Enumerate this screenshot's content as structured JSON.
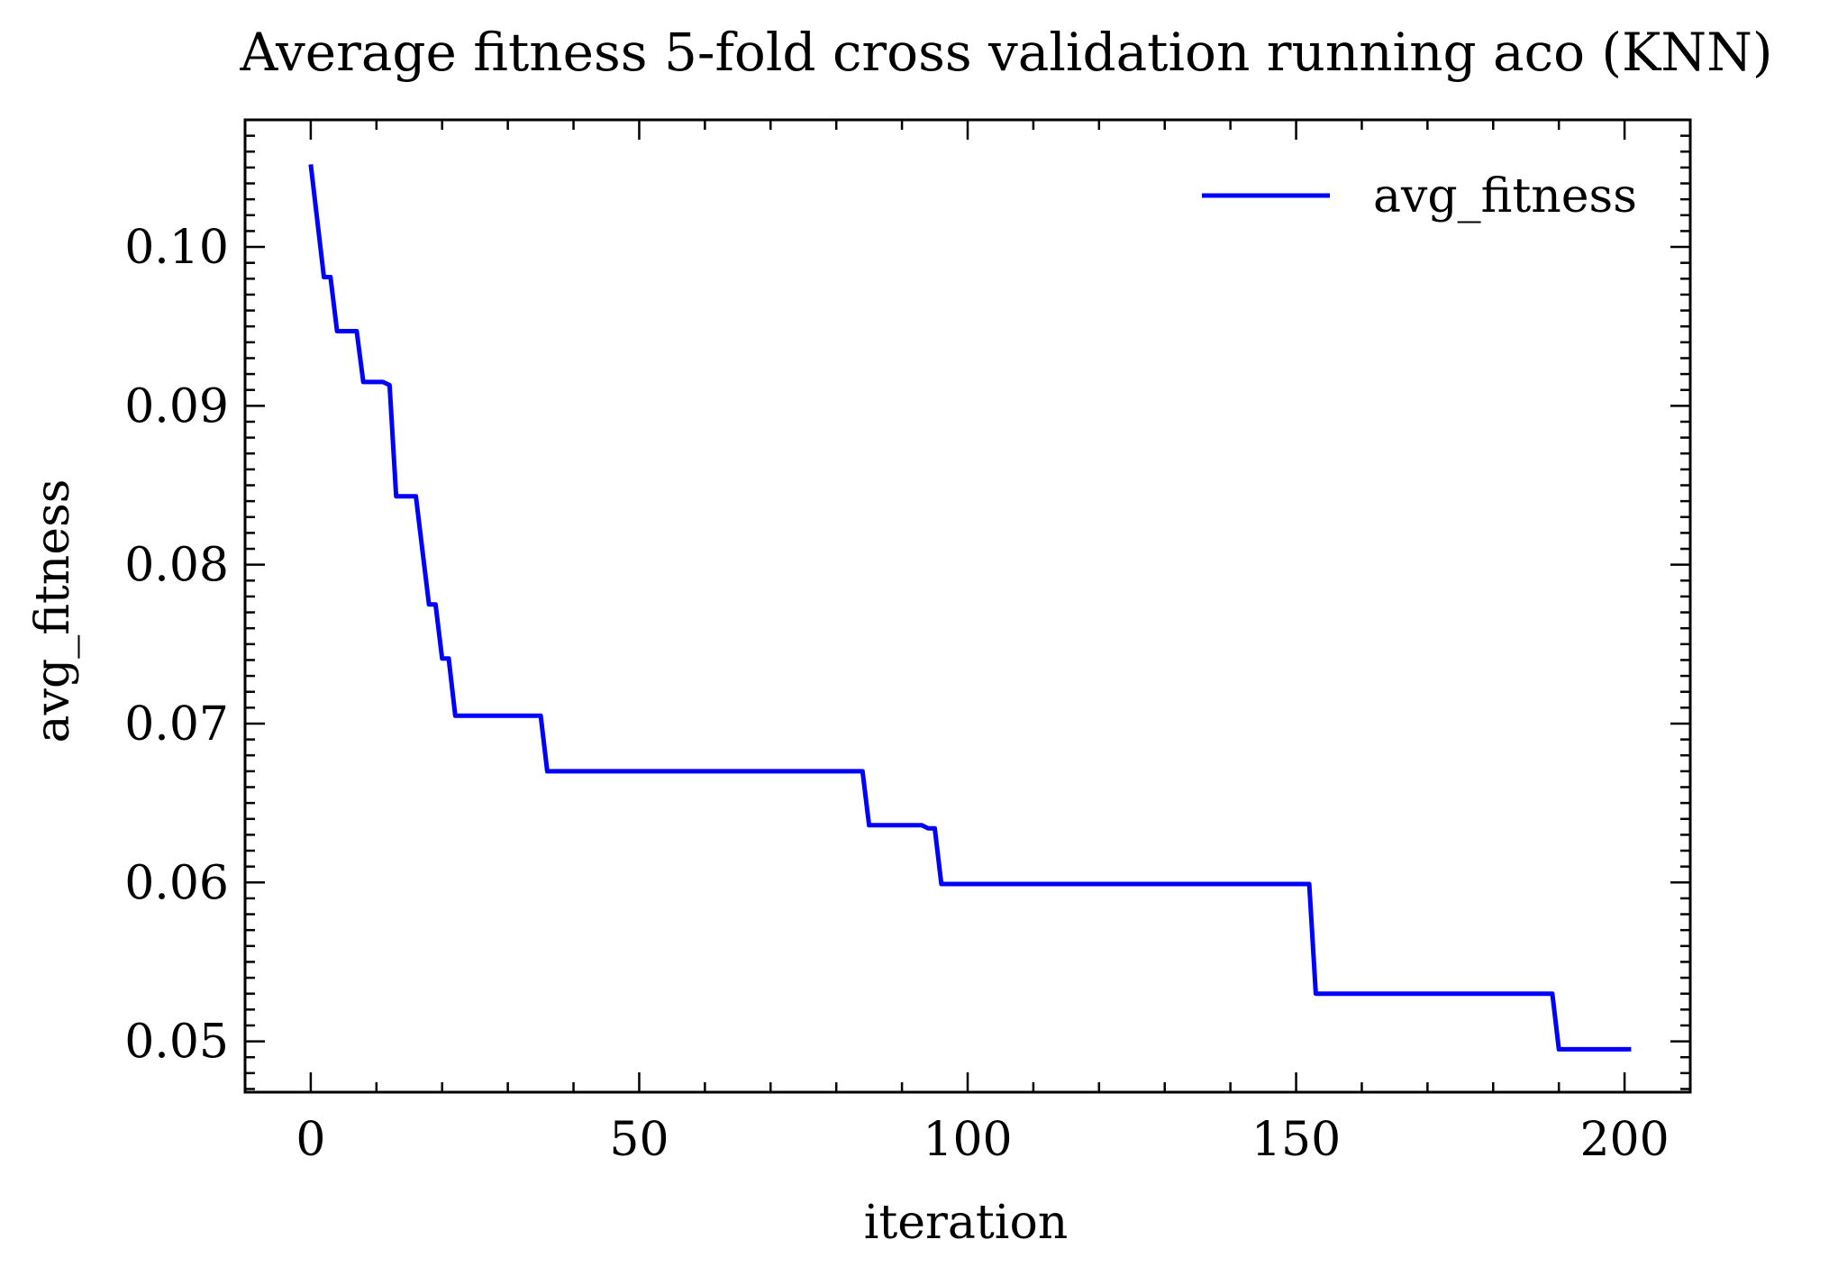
{
  "chart_data": {
    "type": "line",
    "title": "Average fitness 5-fold cross validation running aco (KNN)",
    "xlabel": "iteration",
    "ylabel": "avg_fitness",
    "xlim": [
      -10,
      210
    ],
    "ylim": [
      0.0468,
      0.108
    ],
    "xticks": [
      0,
      50,
      100,
      150,
      200
    ],
    "xtick_labels": [
      "0",
      "50",
      "100",
      "150",
      "200"
    ],
    "yticks": [
      0.05,
      0.06,
      0.07,
      0.08,
      0.09,
      0.1
    ],
    "ytick_labels": [
      "0.05",
      "0.06",
      "0.07",
      "0.08",
      "0.09",
      "0.10"
    ],
    "grid": false,
    "legend_position": "top-right",
    "series": [
      {
        "name": "avg_fitness",
        "color": "#0000ff",
        "points": [
          [
            0,
            0.1052
          ],
          [
            2,
            0.0981
          ],
          [
            3,
            0.0981
          ],
          [
            4,
            0.0947
          ],
          [
            7,
            0.0947
          ],
          [
            8,
            0.0915
          ],
          [
            11,
            0.0915
          ],
          [
            12,
            0.0913
          ],
          [
            13,
            0.0843
          ],
          [
            16,
            0.0843
          ],
          [
            18,
            0.0775
          ],
          [
            19,
            0.0775
          ],
          [
            20,
            0.0741
          ],
          [
            21,
            0.0741
          ],
          [
            22,
            0.0705
          ],
          [
            35,
            0.0705
          ],
          [
            36,
            0.067
          ],
          [
            84,
            0.067
          ],
          [
            85,
            0.0636
          ],
          [
            93,
            0.0636
          ],
          [
            94,
            0.0634
          ],
          [
            95,
            0.0634
          ],
          [
            96,
            0.0599
          ],
          [
            152,
            0.0599
          ],
          [
            153,
            0.053
          ],
          [
            189,
            0.053
          ],
          [
            190,
            0.0495
          ],
          [
            201,
            0.0495
          ]
        ]
      }
    ]
  }
}
